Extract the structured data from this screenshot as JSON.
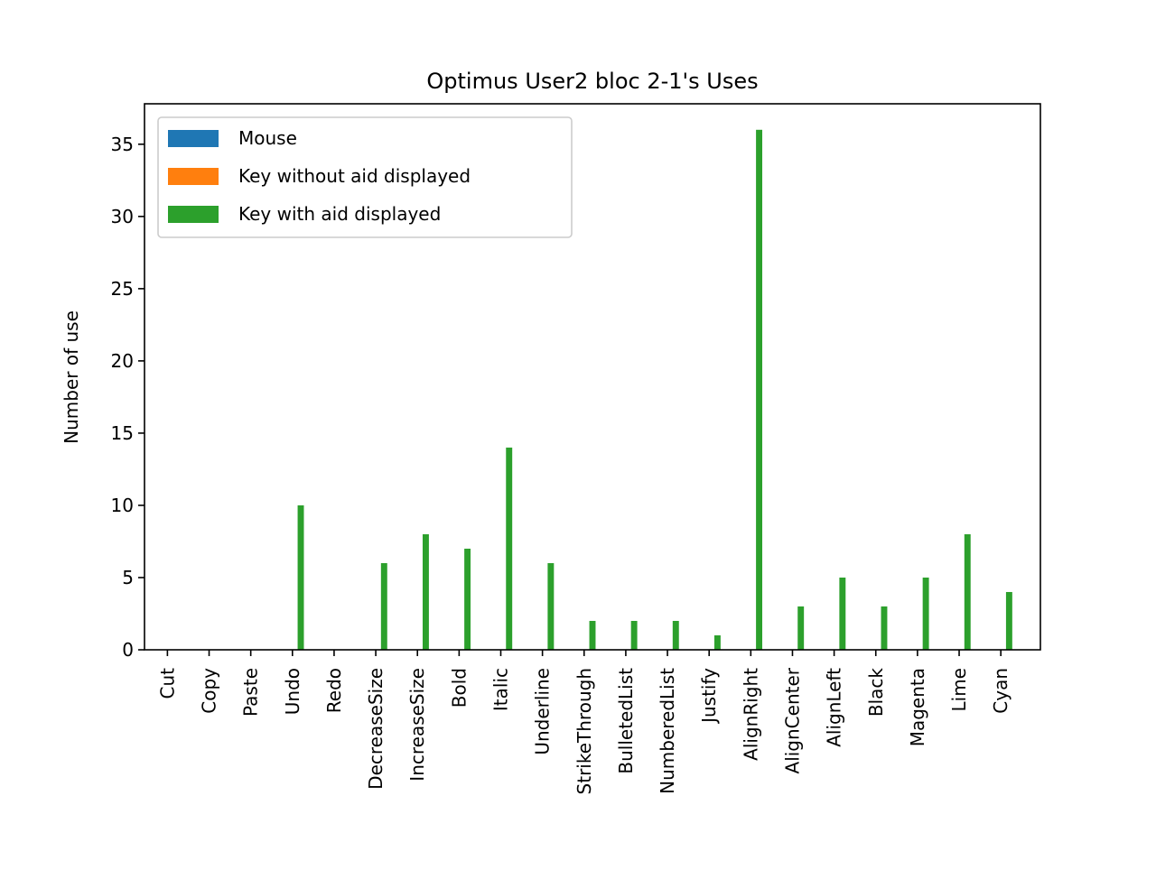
{
  "chart_data": {
    "type": "bar",
    "title": "Optimus User2 bloc 2-1's Uses",
    "xlabel": "",
    "ylabel": "Number of use",
    "ylim": [
      0,
      37.8
    ],
    "yticks": [
      0,
      5,
      10,
      15,
      20,
      25,
      30,
      35
    ],
    "grid": false,
    "legend_position": "top-left",
    "categories": [
      "Cut",
      "Copy",
      "Paste",
      "Undo",
      "Redo",
      "DecreaseSize",
      "IncreaseSize",
      "Bold",
      "Italic",
      "Underline",
      "StrikeThrough",
      "BulletedList",
      "NumberedList",
      "Justify",
      "AlignRight",
      "AlignCenter",
      "AlignLeft",
      "Black",
      "Magenta",
      "Lime",
      "Cyan"
    ],
    "series": [
      {
        "name": "Mouse",
        "color": "#1f77b4",
        "values": [
          0,
          0,
          0,
          0,
          0,
          0,
          0,
          0,
          0,
          0,
          0,
          0,
          0,
          0,
          0,
          0,
          0,
          0,
          0,
          0,
          0
        ]
      },
      {
        "name": "Key without aid displayed",
        "color": "#ff7f0e",
        "values": [
          0,
          0,
          0,
          0,
          0,
          0,
          0,
          0,
          0,
          0,
          0,
          0,
          0,
          0,
          0,
          0,
          0,
          0,
          0,
          0,
          0
        ]
      },
      {
        "name": "Key with aid displayed",
        "color": "#2ca02c",
        "values": [
          0,
          0,
          0,
          10,
          0,
          6,
          8,
          7,
          14,
          6,
          2,
          2,
          2,
          1,
          36,
          3,
          5,
          3,
          5,
          8,
          4
        ]
      }
    ]
  }
}
